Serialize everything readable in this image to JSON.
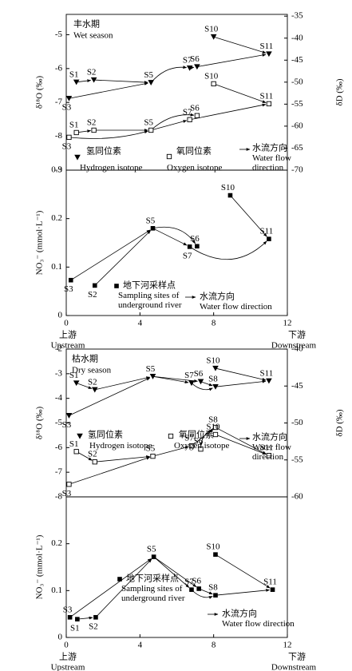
{
  "chart_data": [
    {
      "type": "scatter",
      "title": "丰水期",
      "subtitle": "Wet season",
      "sites": [
        "S1",
        "S2",
        "S3",
        "S5",
        "S6",
        "S7",
        "S10",
        "S11"
      ],
      "x": [
        0.55,
        1.5,
        0.15,
        4.6,
        7.1,
        6.7,
        8.0,
        11.0
      ],
      "xlim": [
        0,
        12
      ],
      "ylim": [
        -9,
        -4.4
      ],
      "yticks": [
        -9,
        -8,
        -7,
        -6,
        -5
      ],
      "y2lim": [
        -70,
        -34.6
      ],
      "y2ticks": [
        -70,
        -65,
        -60,
        -55,
        -50,
        -45,
        -40,
        -35
      ],
      "ylabel": "δ¹⁸O (‰)",
      "y2label": "δD (‰)",
      "series": [
        {
          "name": "Hydrogen isotope",
          "name_cn": "氢同位素",
          "marker": "triangle-down",
          "color": "#000000",
          "axis": "y2",
          "values": [
            -50.0,
            -49.5,
            -53.7,
            -50.1,
            -46.5,
            -46.8,
            -39.7,
            -43.6
          ]
        },
        {
          "name": "Oxygen isotope",
          "name_cn": "氧同位素",
          "marker": "square-open",
          "color": "#000000",
          "values": [
            -7.89,
            -7.82,
            -8.03,
            -7.82,
            -7.39,
            -7.51,
            -6.45,
            -7.04
          ]
        }
      ],
      "flow_legend": [
        "水流方向",
        "Water flow direction"
      ]
    },
    {
      "type": "scatter",
      "sites": [
        "S3",
        "S2",
        "S5",
        "S6",
        "S7",
        "S10",
        "S11"
      ],
      "x": [
        0.25,
        1.55,
        4.7,
        7.1,
        6.7,
        8.9,
        11.0
      ],
      "xlim": [
        0,
        12
      ],
      "xticks": [
        0,
        4,
        8,
        12
      ],
      "ylim": [
        0,
        0.3
      ],
      "yticks": [
        0,
        0.1,
        0.2,
        0.3
      ],
      "ylabel": "NO₃⁻ (mmol·L⁻¹)",
      "series": [
        {
          "name": "Sampling sites of underground river",
          "name_cn": "地下河采样点",
          "marker": "square",
          "color": "#000000",
          "values": [
            0.073,
            0.062,
            0.18,
            0.143,
            0.142,
            0.248,
            0.158
          ]
        }
      ],
      "flow_legend": [
        "水流方向",
        "Water flow direction"
      ],
      "x_start": [
        "上游",
        "Upstream"
      ],
      "x_end": [
        "下游",
        "Downstream"
      ]
    },
    {
      "type": "scatter",
      "title": "枯水期",
      "subtitle": "Dry season",
      "sites": [
        "S1",
        "S2",
        "S3",
        "S5",
        "S6",
        "S7",
        "S8",
        "S10",
        "S11"
      ],
      "x": [
        0.55,
        1.55,
        0.15,
        4.7,
        7.3,
        6.8,
        8.1,
        8.1,
        11.0
      ],
      "xlim": [
        0,
        12
      ],
      "ylim": [
        -8,
        -2
      ],
      "yticks": [
        -8,
        -7,
        -6,
        -5,
        -4,
        -3,
        -2
      ],
      "y2lim": [
        -60,
        -40
      ],
      "y2ticks": [
        -60,
        -55,
        -50,
        -45,
        -40
      ],
      "ylabel": "δ¹⁸O (‰)",
      "y2label": "δD (‰)",
      "series": [
        {
          "name": "Hydrogen isotope",
          "name_cn": "氢同位素",
          "marker": "triangle-down",
          "color": "#000000",
          "axis": "y2",
          "values": [
            -44.6,
            -45.5,
            -49.0,
            -43.7,
            -44.4,
            -44.6,
            -45.1,
            -42.6,
            -44.3
          ]
        },
        {
          "name": "Oxygen isotope",
          "name_cn": "氧同位素",
          "marker": "square-open",
          "color": "#000000",
          "values": [
            -6.16,
            -6.58,
            -7.49,
            -6.35,
            -6.06,
            -5.93,
            -5.18,
            -5.47,
            -6.32
          ]
        }
      ],
      "flow_legend": [
        "水流方向",
        "Water flow direction"
      ]
    },
    {
      "type": "scatter",
      "sites": [
        "S3",
        "S1",
        "S2",
        "S5",
        "S6",
        "S7",
        "S8",
        "S10",
        "S11"
      ],
      "x": [
        0.2,
        0.6,
        1.6,
        4.75,
        7.2,
        6.8,
        8.1,
        8.1,
        11.2
      ],
      "xlim": [
        0,
        12
      ],
      "xticks": [
        0,
        4,
        8,
        12
      ],
      "ylim": [
        0,
        0.3
      ],
      "yticks": [
        0,
        0.1,
        0.2
      ],
      "ylabel": "NO₃⁻ (mmol·L⁻¹)",
      "series": [
        {
          "name": "Sampling sites of underground river",
          "name_cn": "地下河采样点",
          "marker": "square",
          "color": "#000000",
          "values": [
            0.043,
            0.039,
            0.043,
            0.172,
            0.104,
            0.102,
            0.09,
            0.177,
            0.102
          ]
        }
      ],
      "flow_legend": [
        "水流方向",
        "Water flow direction"
      ],
      "x_start": [
        "上游",
        "Upstream"
      ],
      "x_end": [
        "下游",
        "Downstream"
      ]
    }
  ]
}
